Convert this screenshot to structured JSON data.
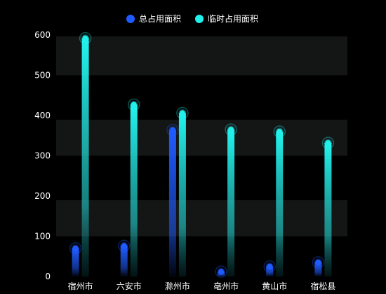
{
  "chart_data": {
    "type": "bar",
    "categories": [
      "宿州市",
      "六安市",
      "滁州市",
      "亳州市",
      "黄山市",
      "宿松县"
    ],
    "series": [
      {
        "name": "总占用面积",
        "color": "#1f5cff",
        "values": [
          70,
          76,
          364,
          12,
          25,
          35
        ]
      },
      {
        "name": "临时占用面积",
        "color": "#22f0ea",
        "values": [
          592,
          427,
          406,
          365,
          360,
          332
        ]
      }
    ],
    "ylim": [
      0,
      600
    ],
    "yticks": [
      0,
      100,
      200,
      300,
      400,
      500,
      600
    ],
    "grid": "alternating bands",
    "legend": "top-center",
    "title": "",
    "xlabel": "",
    "ylabel": ""
  }
}
